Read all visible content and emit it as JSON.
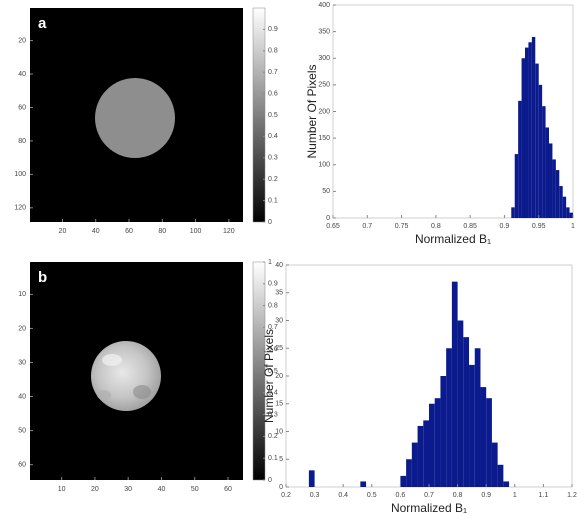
{
  "chart_data": [
    {
      "type": "image",
      "panel_label": "a",
      "xlim": [
        0.5,
        128.5
      ],
      "ylim": [
        0.5,
        128.5
      ],
      "y_reversed": true,
      "xticks": [
        20,
        40,
        60,
        80,
        100,
        120
      ],
      "yticks": [
        20,
        40,
        60,
        80,
        100,
        120
      ],
      "colorbar_lim": [
        0,
        1
      ],
      "colorbar_ticks": [
        0,
        0.1,
        0.2,
        0.3,
        0.4,
        0.5,
        0.6,
        0.7,
        0.8,
        0.9
      ]
    },
    {
      "type": "histogram",
      "x_label": "Normalized B₁",
      "y_label": "Number Of Pixels",
      "color": "#0b1a8c",
      "xlim": [
        0.65,
        1
      ],
      "xticks": [
        0.65,
        0.7,
        0.75,
        0.8,
        0.85,
        0.9,
        0.95,
        1
      ],
      "ylim": [
        0,
        400
      ],
      "yticks": [
        0,
        50,
        100,
        150,
        200,
        250,
        300,
        350,
        400
      ],
      "bins": [
        0.91,
        0.915,
        0.92,
        0.925,
        0.93,
        0.935,
        0.94,
        0.945,
        0.95,
        0.955,
        0.96,
        0.965,
        0.97,
        0.975,
        0.98,
        0.985,
        0.99,
        0.995,
        1.0
      ],
      "values": [
        20,
        120,
        220,
        300,
        320,
        330,
        340,
        290,
        250,
        210,
        170,
        140,
        110,
        90,
        60,
        40,
        20,
        10
      ]
    },
    {
      "type": "image",
      "panel_label": "b",
      "xlim": [
        0.5,
        64.5
      ],
      "ylim": [
        0.5,
        64.5
      ],
      "y_reversed": true,
      "xticks": [
        10,
        20,
        30,
        40,
        50,
        60
      ],
      "yticks": [
        10,
        20,
        30,
        40,
        50,
        60
      ],
      "colorbar_lim": [
        0,
        1
      ],
      "colorbar_ticks": [
        0,
        0.1,
        0.2,
        0.3,
        0.4,
        0.5,
        0.6,
        0.7,
        0.8,
        0.9,
        1
      ]
    },
    {
      "type": "histogram",
      "x_label": "Normalized B₁",
      "y_label": "Number Of Pixels",
      "color": "#0b1a8c",
      "xlim": [
        0.2,
        1.2
      ],
      "xticks": [
        0.2,
        0.3,
        0.4,
        0.5,
        0.6,
        0.7,
        0.8,
        0.9,
        1,
        1.1,
        1.2
      ],
      "ylim": [
        0,
        40
      ],
      "yticks": [
        0,
        5,
        10,
        15,
        20,
        25,
        30,
        35,
        40
      ],
      "bins": [
        0.28,
        0.3,
        0.32,
        0.34,
        0.36,
        0.38,
        0.4,
        0.42,
        0.44,
        0.46,
        0.48,
        0.5,
        0.52,
        0.54,
        0.56,
        0.58,
        0.6,
        0.62,
        0.64,
        0.66,
        0.68,
        0.7,
        0.72,
        0.74,
        0.76,
        0.78,
        0.8,
        0.82,
        0.84,
        0.86,
        0.88,
        0.9,
        0.92,
        0.94,
        0.96,
        0.98,
        1.0
      ],
      "values": [
        3,
        0,
        0,
        0,
        0,
        0,
        0,
        0,
        0,
        1,
        0,
        0,
        0,
        0,
        0,
        0,
        2,
        5,
        8,
        11,
        12,
        15,
        16,
        20,
        25,
        37,
        30,
        27,
        22,
        25,
        18,
        16,
        8,
        4,
        1,
        0
      ]
    }
  ]
}
